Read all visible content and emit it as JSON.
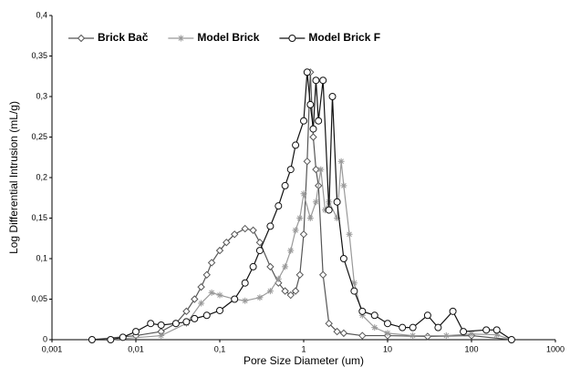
{
  "chart_data": {
    "type": "line",
    "xlabel": "Pore Size Diameter (um)",
    "ylabel": "Log Differential Intrusion (mL/g)",
    "xscale": "log",
    "legend": "upper left",
    "grid": false,
    "xlim": [
      0.001,
      1000
    ],
    "ylim": [
      0,
      0.4
    ],
    "xticks": [
      {
        "value": 0.001,
        "label": "0,001"
      },
      {
        "value": 0.01,
        "label": "0,01"
      },
      {
        "value": 0.1,
        "label": "0,1"
      },
      1,
      10,
      100,
      1000
    ],
    "yticks": [
      0,
      {
        "value": 0.05,
        "label": "0,05"
      },
      {
        "value": 0.1,
        "label": "0,1"
      },
      {
        "value": 0.15,
        "label": "0,15"
      },
      {
        "value": 0.2,
        "label": "0,2"
      },
      {
        "value": 0.25,
        "label": "0,25"
      },
      {
        "value": 0.3,
        "label": "0,3"
      },
      {
        "value": 0.35,
        "label": "0,35"
      },
      {
        "value": 0.4,
        "label": "0,4"
      }
    ],
    "series": [
      {
        "name": "Brick Bač",
        "color": "#555555",
        "marker": "diamond",
        "x": [
          0.003,
          0.01,
          0.02,
          0.03,
          0.04,
          0.05,
          0.06,
          0.07,
          0.08,
          0.1,
          0.12,
          0.15,
          0.2,
          0.25,
          0.3,
          0.4,
          0.5,
          0.6,
          0.7,
          0.8,
          0.9,
          1.0,
          1.1,
          1.2,
          1.3,
          1.4,
          1.5,
          1.7,
          2,
          2.5,
          3,
          5,
          10,
          30,
          100,
          300
        ],
        "values": [
          0,
          0.005,
          0.01,
          0.02,
          0.035,
          0.05,
          0.065,
          0.08,
          0.095,
          0.11,
          0.12,
          0.13,
          0.137,
          0.135,
          0.12,
          0.09,
          0.07,
          0.06,
          0.055,
          0.06,
          0.08,
          0.13,
          0.22,
          0.33,
          0.25,
          0.21,
          0.19,
          0.08,
          0.02,
          0.01,
          0.008,
          0.005,
          0.005,
          0.004,
          0.005,
          0
        ]
      },
      {
        "name": "Model Brick",
        "color": "#999999",
        "marker": "asterisk",
        "x": [
          0.005,
          0.02,
          0.04,
          0.06,
          0.08,
          0.1,
          0.15,
          0.2,
          0.3,
          0.4,
          0.5,
          0.6,
          0.7,
          0.8,
          0.9,
          1.0,
          1.2,
          1.4,
          1.6,
          1.8,
          2,
          2.5,
          2.8,
          3,
          3.5,
          4,
          5,
          7,
          10,
          20,
          50,
          100,
          200,
          300
        ],
        "values": [
          0,
          0.005,
          0.02,
          0.045,
          0.058,
          0.055,
          0.05,
          0.048,
          0.052,
          0.06,
          0.075,
          0.09,
          0.11,
          0.135,
          0.15,
          0.18,
          0.15,
          0.17,
          0.21,
          0.16,
          0.17,
          0.15,
          0.22,
          0.19,
          0.13,
          0.07,
          0.03,
          0.015,
          0.008,
          0.005,
          0.005,
          0.007,
          0.006,
          0
        ]
      },
      {
        "name": "Model Brick F",
        "color": "#111111",
        "marker": "circle",
        "x": [
          0.003,
          0.005,
          0.007,
          0.01,
          0.015,
          0.02,
          0.03,
          0.04,
          0.05,
          0.07,
          0.1,
          0.15,
          0.2,
          0.25,
          0.3,
          0.4,
          0.5,
          0.6,
          0.7,
          0.8,
          1.0,
          1.1,
          1.2,
          1.3,
          1.4,
          1.5,
          1.7,
          2.0,
          2.2,
          2.5,
          3,
          4,
          5,
          7,
          10,
          15,
          20,
          30,
          40,
          60,
          80,
          150,
          200,
          300
        ],
        "values": [
          0,
          0,
          0.003,
          0.01,
          0.02,
          0.018,
          0.02,
          0.022,
          0.026,
          0.03,
          0.036,
          0.05,
          0.07,
          0.09,
          0.11,
          0.14,
          0.165,
          0.19,
          0.21,
          0.24,
          0.27,
          0.33,
          0.29,
          0.26,
          0.32,
          0.27,
          0.32,
          0.16,
          0.3,
          0.17,
          0.1,
          0.06,
          0.035,
          0.03,
          0.02,
          0.015,
          0.015,
          0.03,
          0.015,
          0.035,
          0.01,
          0.012,
          0.012,
          0
        ]
      }
    ]
  }
}
